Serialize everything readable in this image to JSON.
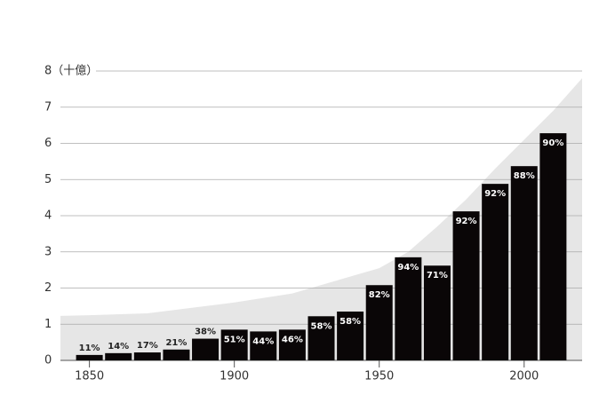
{
  "chart_data": {
    "type": "bar",
    "x": [
      1850,
      1860,
      1870,
      1880,
      1890,
      1900,
      1910,
      1920,
      1930,
      1940,
      1950,
      1960,
      1970,
      1980,
      1990,
      2000,
      2010
    ],
    "values": [
      0.15,
      0.2,
      0.22,
      0.3,
      0.6,
      0.85,
      0.8,
      0.85,
      1.22,
      1.35,
      2.08,
      2.85,
      2.62,
      4.12,
      4.88,
      5.37,
      6.28
    ],
    "value_labels": [
      "11%",
      "14%",
      "17%",
      "21%",
      "38%",
      "51%",
      "44%",
      "46%",
      "58%",
      "58%",
      "82%",
      "94%",
      "71%",
      "92%",
      "92%",
      "88%",
      "90%"
    ],
    "color": "#0a0607",
    "area": {
      "x": [
        1840,
        1850,
        1870,
        1900,
        1920,
        1950,
        1960,
        1970,
        1980,
        1990,
        2000,
        2010,
        2020
      ],
      "values": [
        1.23,
        1.25,
        1.3,
        1.6,
        1.85,
        2.55,
        3.0,
        3.7,
        4.45,
        5.3,
        6.1,
        6.9,
        7.8
      ],
      "color": "#e6e6e6"
    },
    "xlim": [
      1840,
      2020
    ],
    "xticks": [
      1850,
      1900,
      1950,
      2000
    ],
    "ylim": [
      0,
      8
    ],
    "yticks": [
      0,
      1,
      2,
      3,
      4,
      5,
      6,
      7,
      {
        "value": 8,
        "label": "8（十億）"
      }
    ],
    "grid": true
  }
}
